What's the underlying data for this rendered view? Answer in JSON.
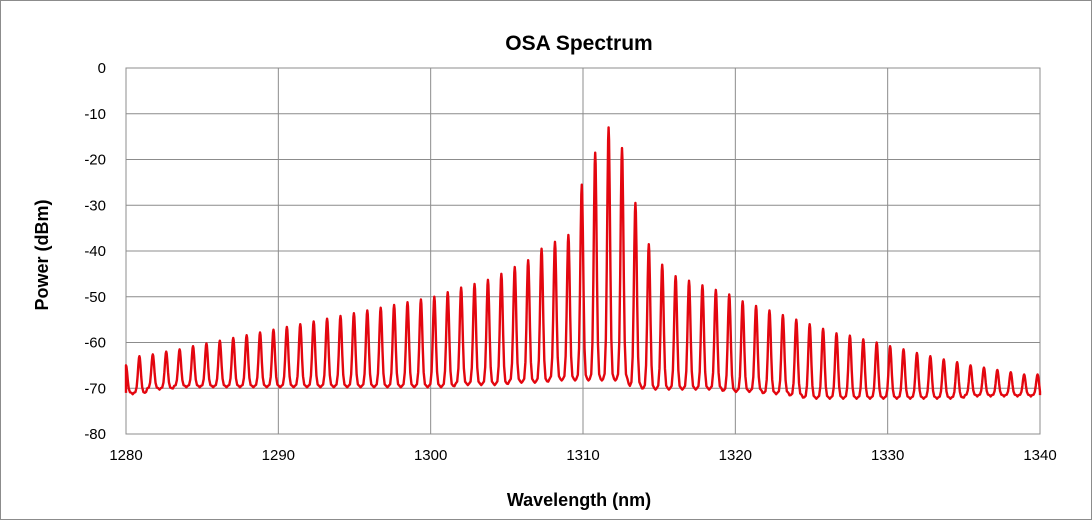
{
  "colors": {
    "series": "#e3060f",
    "grid": "#8c8c8c",
    "frame": "#8c8c8c"
  },
  "chart_data": {
    "type": "line",
    "title": "OSA Spectrum",
    "xlabel": "Wavelength (nm)",
    "ylabel": "Power (dBm)",
    "xlim": [
      1280,
      1340
    ],
    "ylim": [
      -80,
      0
    ],
    "xticks": [
      1280,
      1290,
      1300,
      1310,
      1320,
      1330,
      1340
    ],
    "yticks": [
      0,
      -10,
      -20,
      -30,
      -40,
      -50,
      -60,
      -70,
      -80
    ],
    "grid": true,
    "legend": "none",
    "mode_spacing_nm": 0.88,
    "series": [
      {
        "name": "",
        "color": "#e3060f",
        "peaks": {
          "x": [
            1280.0,
            1280.88,
            1281.76,
            1282.64,
            1283.52,
            1284.4,
            1285.28,
            1286.16,
            1287.04,
            1287.92,
            1288.8,
            1289.68,
            1290.56,
            1291.44,
            1292.32,
            1293.2,
            1294.08,
            1294.96,
            1295.84,
            1296.72,
            1297.6,
            1298.48,
            1299.36,
            1300.24,
            1301.12,
            1302.0,
            1302.88,
            1303.76,
            1304.64,
            1305.52,
            1306.4,
            1307.28,
            1308.16,
            1309.04,
            1309.92,
            1310.8,
            1311.68,
            1312.56,
            1313.44,
            1314.32,
            1315.2,
            1316.08,
            1316.96,
            1317.84,
            1318.72,
            1319.6,
            1320.48,
            1321.36,
            1322.24,
            1323.12,
            1324.0,
            1324.88,
            1325.76,
            1326.64,
            1327.52,
            1328.4,
            1329.28,
            1330.16,
            1331.04,
            1331.92,
            1332.8,
            1333.68,
            1334.56,
            1335.44,
            1336.32,
            1337.2,
            1338.08,
            1338.96,
            1339.84
          ],
          "y": [
            -65.0,
            -63.0,
            -62.6,
            -62.0,
            -61.5,
            -60.8,
            -60.2,
            -59.6,
            -59.0,
            -58.4,
            -57.8,
            -57.2,
            -56.6,
            -56.0,
            -55.4,
            -54.8,
            -54.2,
            -53.6,
            -53.0,
            -52.4,
            -51.8,
            -51.2,
            -50.6,
            -50.0,
            -49.0,
            -48.0,
            -47.2,
            -46.3,
            -45.0,
            -43.5,
            -42.0,
            -39.5,
            -38.0,
            -36.5,
            -25.5,
            -18.5,
            -13.0,
            -17.5,
            -29.5,
            -38.5,
            -43.0,
            -45.5,
            -46.5,
            -47.5,
            -48.5,
            -49.5,
            -51.0,
            -52.0,
            -53.0,
            -54.0,
            -55.0,
            -56.0,
            -57.0,
            -58.0,
            -58.5,
            -59.3,
            -60.0,
            -60.8,
            -61.5,
            -62.3,
            -63.0,
            -63.7,
            -64.3,
            -65.0,
            -65.5,
            -66.0,
            -66.5,
            -67.0,
            -67.0
          ],
          "valley_y": [
            -71.0,
            -71.0,
            -70.0,
            -70.0,
            -69.5,
            -69.5,
            -69.5,
            -69.5,
            -69.5,
            -69.5,
            -69.5,
            -69.5,
            -69.5,
            -69.5,
            -69.5,
            -69.5,
            -69.5,
            -69.5,
            -69.5,
            -69.5,
            -69.5,
            -69.5,
            -69.5,
            -69.5,
            -69.5,
            -69.0,
            -69.0,
            -69.0,
            -69.0,
            -68.5,
            -68.5,
            -68.5,
            -68.0,
            -68.0,
            -68.0,
            -68.0,
            -68.0,
            -68.0,
            -69.5,
            -70.0,
            -70.0,
            -70.0,
            -70.0,
            -70.0,
            -70.0,
            -70.5,
            -70.5,
            -70.5,
            -71.0,
            -71.0,
            -71.5,
            -72.0,
            -72.0,
            -72.0,
            -72.0,
            -72.0,
            -72.0,
            -72.0,
            -72.0,
            -72.0,
            -72.0,
            -72.0,
            -72.0,
            -71.5,
            -71.5,
            -71.5,
            -71.5,
            -71.5,
            -71.5
          ]
        }
      }
    ]
  }
}
